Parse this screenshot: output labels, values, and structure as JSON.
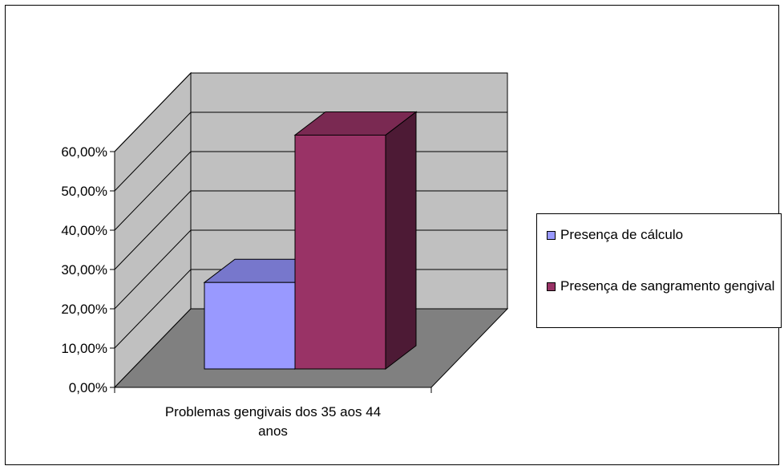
{
  "chart_data": {
    "type": "bar",
    "style": "3d-clustered-column",
    "title": "",
    "categories": [
      "Problemas gengivais dos 35 aos 44 anos"
    ],
    "series": [
      {
        "name": "Presença de cálculo",
        "values": [
          0.22
        ],
        "color": "#9999ff",
        "top_color": "#7777cc",
        "side_color": "#5c5c99"
      },
      {
        "name": "Presença de sangramento gengival",
        "values": [
          0.595
        ],
        "color": "#993366",
        "top_color": "#7a2952",
        "side_color": "#4d1a35"
      }
    ],
    "yticks": [
      "0,00%",
      "10,00%",
      "20,00%",
      "30,00%",
      "40,00%",
      "50,00%",
      "60,00%"
    ],
    "ylim": [
      0,
      0.6
    ],
    "grid": true,
    "wall_color": "#c0c0c0",
    "floor_color": "#808080",
    "legend_position": "right"
  },
  "legend": {
    "items": [
      {
        "label": "Presença de cálculo"
      },
      {
        "label": "Presença de sangramento gengival"
      }
    ]
  }
}
